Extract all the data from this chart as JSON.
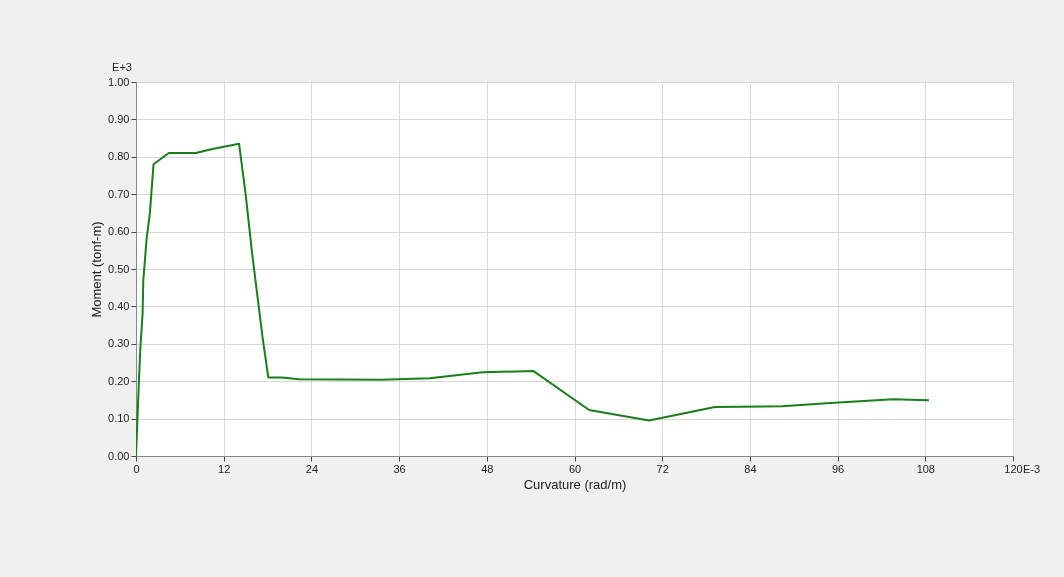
{
  "chart_data": {
    "type": "line",
    "xlabel": "Curvature (rad/m)",
    "ylabel": "Moment (tonf-m)",
    "annotations": [
      "E+3",
      "E-3"
    ],
    "x": [
      0,
      0.4,
      0.6,
      0.9,
      1.0,
      1.45,
      1.9,
      2.4,
      4.5,
      8.2,
      10.3,
      14.1,
      15.0,
      15.9,
      17.3,
      18.1,
      20.0,
      22.3,
      33.6,
      40.2,
      47.4,
      54.4,
      62.0,
      70.2,
      79.2,
      88.4,
      95.0,
      103.6,
      108.5
    ],
    "series": [
      {
        "color": "#1a7f1a",
        "values": [
          0,
          0.2,
          0.29,
          0.38,
          0.47,
          0.58,
          0.65,
          0.78,
          0.81,
          0.81,
          0.82,
          0.835,
          0.7,
          0.54,
          0.32,
          0.21,
          0.21,
          0.205,
          0.204,
          0.208,
          0.224,
          0.227,
          0.123,
          0.095,
          0.131,
          0.133,
          0.142,
          0.152,
          0.149
        ]
      }
    ],
    "xlim": [
      0,
      120
    ],
    "xticks": [
      0,
      12,
      24,
      36,
      48,
      60,
      72,
      84,
      96,
      108,
      120
    ],
    "ylim": [
      0,
      1
    ],
    "yticks": [
      {
        "value": 0,
        "label": "0.00"
      },
      {
        "value": 0.1,
        "label": "0.10"
      },
      {
        "value": 0.2,
        "label": "0.20"
      },
      {
        "value": 0.3,
        "label": "0.30"
      },
      {
        "value": 0.4,
        "label": "0.40"
      },
      {
        "value": 0.5,
        "label": "0.50"
      },
      {
        "value": 0.6,
        "label": "0.60"
      },
      {
        "value": 0.7,
        "label": "0.70"
      },
      {
        "value": 0.8,
        "label": "0.80"
      },
      {
        "value": 0.9,
        "label": "0.90"
      },
      {
        "value": 1,
        "label": "1.00"
      }
    ],
    "grid": true,
    "marker": "none",
    "line_style": "solid"
  }
}
